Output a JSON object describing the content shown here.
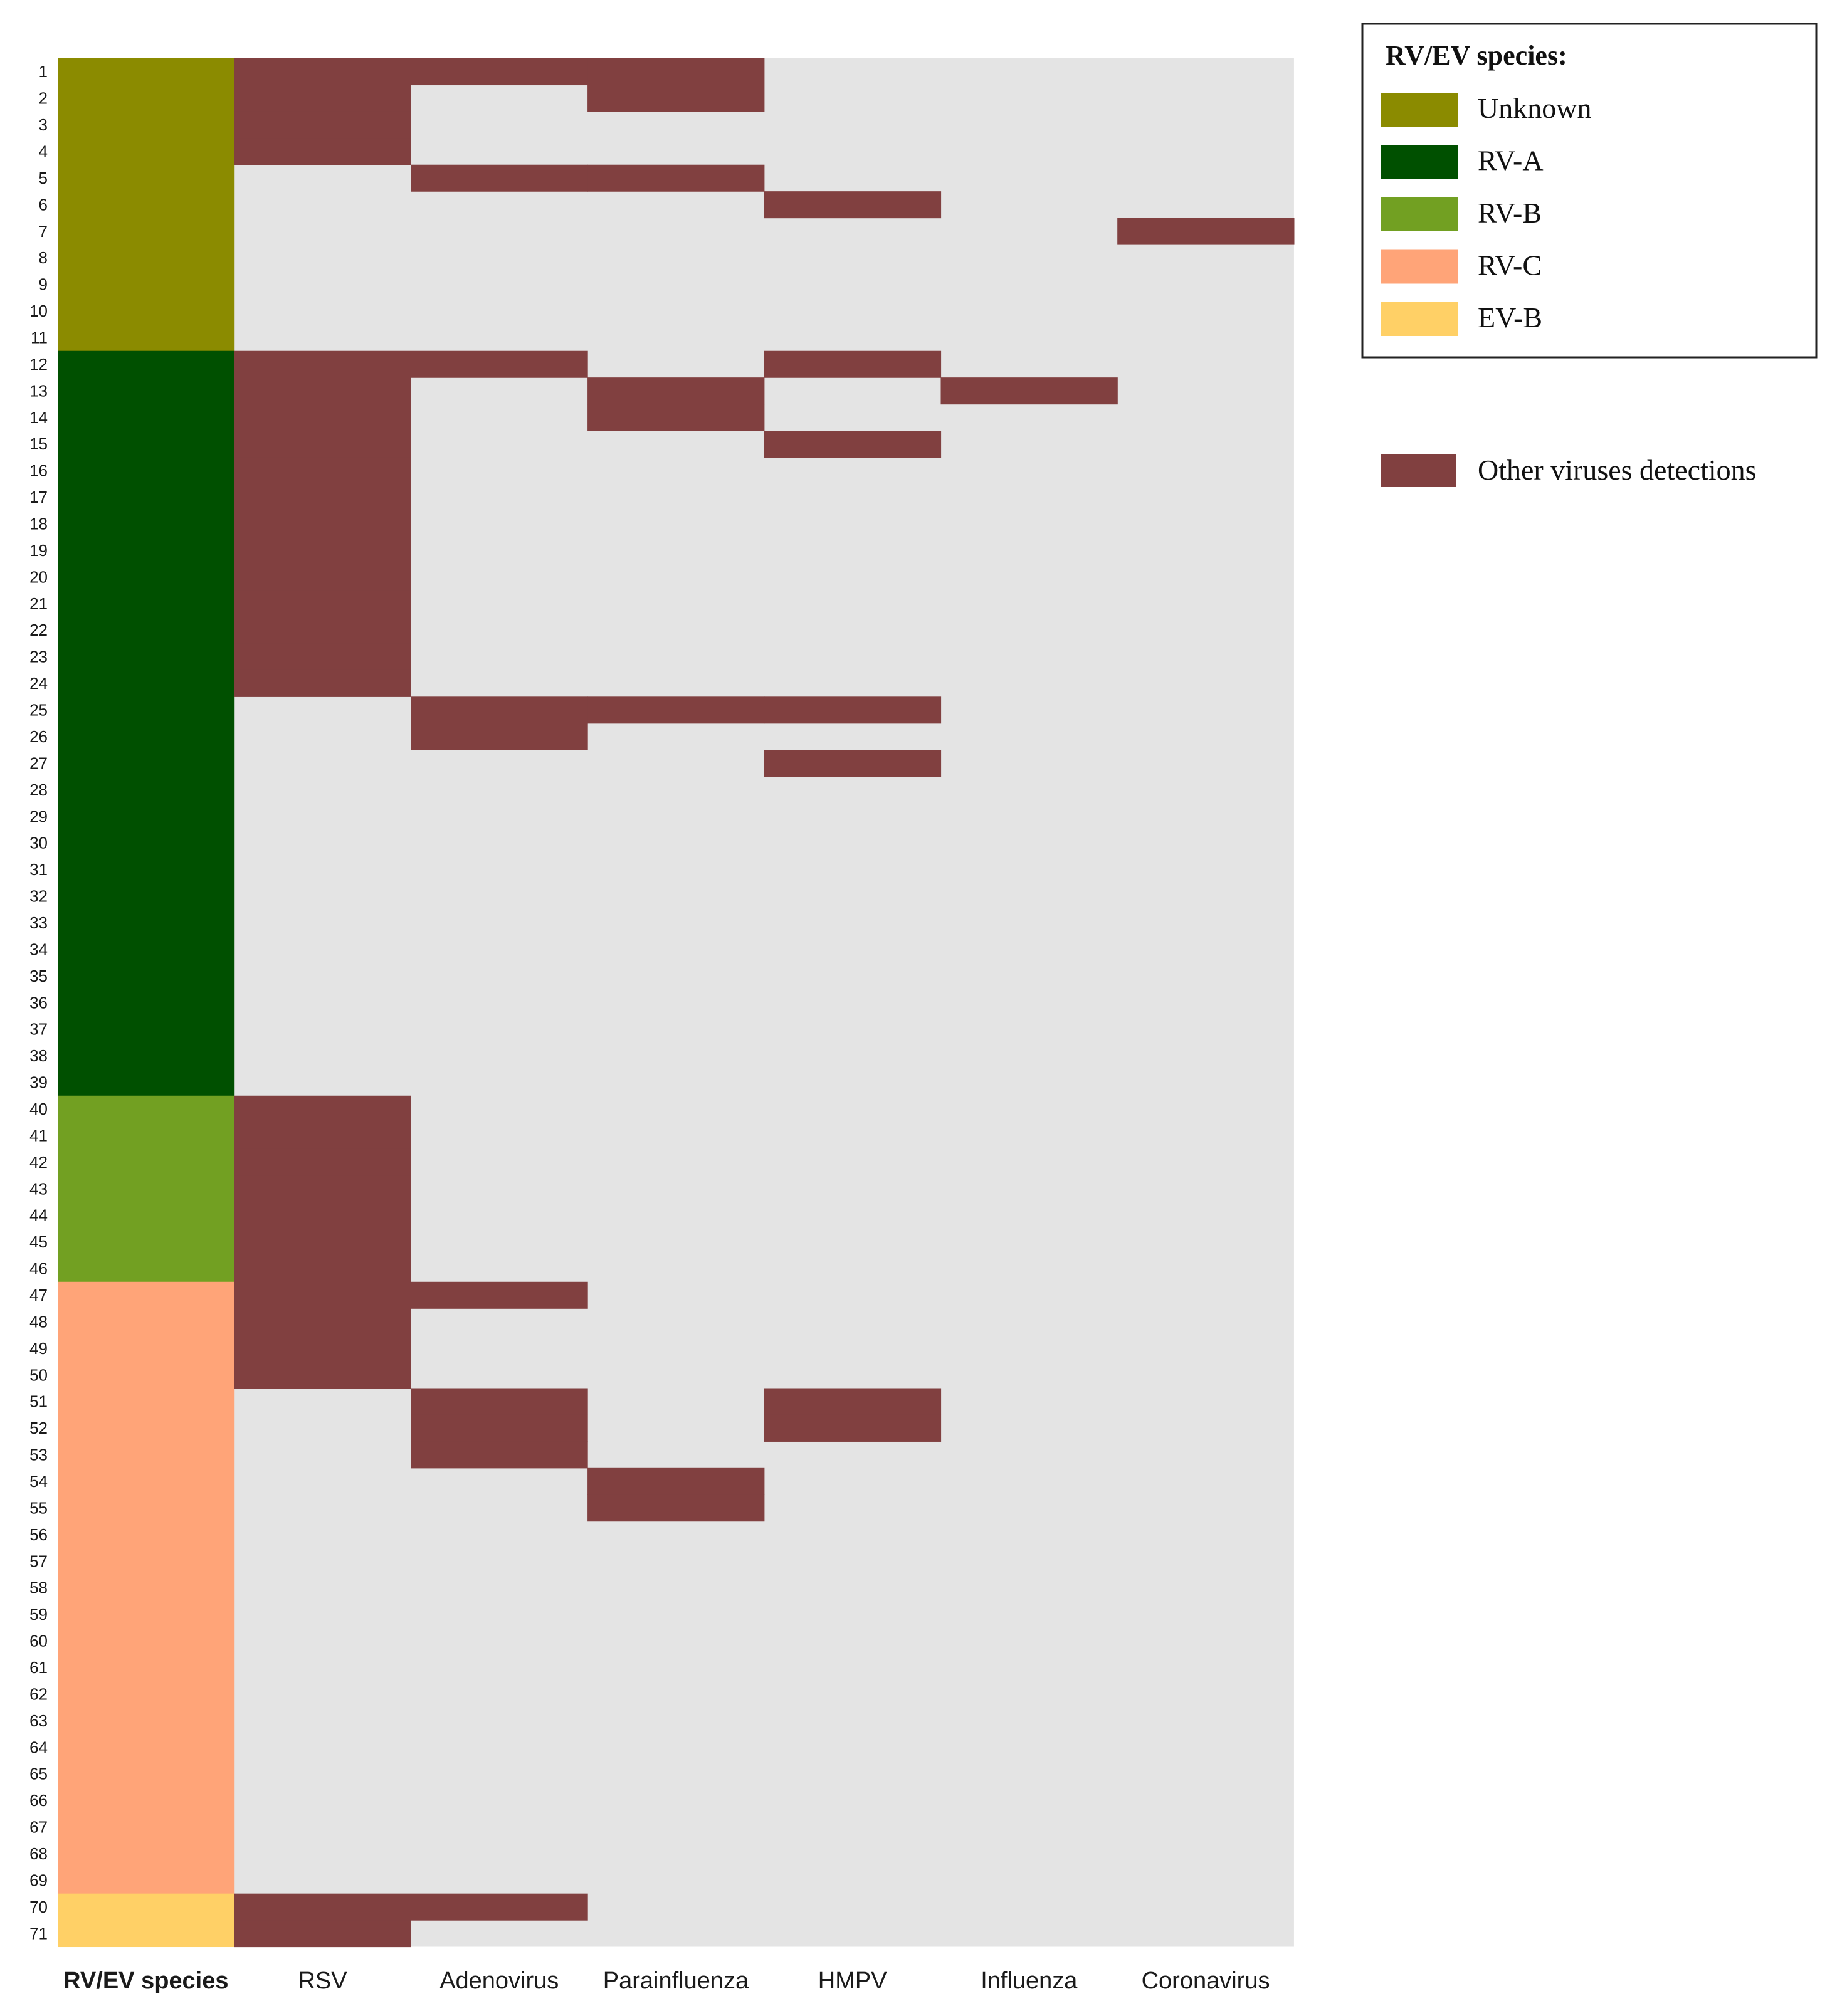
{
  "chart_data": {
    "type": "heatmap",
    "rows": [
      "1",
      "2",
      "3",
      "4",
      "5",
      "6",
      "7",
      "8",
      "9",
      "10",
      "11",
      "12",
      "13",
      "14",
      "15",
      "16",
      "17",
      "18",
      "19",
      "20",
      "21",
      "22",
      "23",
      "24",
      "25",
      "26",
      "27",
      "28",
      "29",
      "30",
      "31",
      "32",
      "33",
      "34",
      "35",
      "36",
      "37",
      "38",
      "39",
      "40",
      "41",
      "42",
      "43",
      "44",
      "45",
      "46",
      "47",
      "48",
      "49",
      "50",
      "51",
      "52",
      "53",
      "54",
      "55",
      "56",
      "57",
      "58",
      "59",
      "60",
      "61",
      "62",
      "63",
      "64",
      "65",
      "66",
      "67",
      "68",
      "69",
      "70",
      "71"
    ],
    "columns": [
      "RV/EV species",
      "RSV",
      "Adenovirus",
      "Parainfluenza",
      "HMPV",
      "Influenza",
      "Coronavirus"
    ],
    "species_blocks": [
      {
        "species": "Unknown",
        "from_row": 1,
        "to_row": 11
      },
      {
        "species": "RV-A",
        "from_row": 12,
        "to_row": 39
      },
      {
        "species": "RV-B",
        "from_row": 40,
        "to_row": 46
      },
      {
        "species": "RV-C",
        "from_row": 47,
        "to_row": 69
      },
      {
        "species": "EV-B",
        "from_row": 70,
        "to_row": 71
      }
    ],
    "detections": {
      "RSV": [
        1,
        2,
        3,
        4,
        12,
        13,
        14,
        15,
        16,
        17,
        18,
        19,
        20,
        21,
        22,
        23,
        24,
        40,
        41,
        42,
        43,
        44,
        45,
        46,
        47,
        48,
        49,
        50,
        70,
        71
      ],
      "Adenovirus": [
        1,
        5,
        12,
        25,
        26,
        47,
        51,
        52,
        53,
        70
      ],
      "Parainfluenza": [
        1,
        2,
        5,
        13,
        14,
        25,
        54,
        55
      ],
      "HMPV": [
        6,
        12,
        15,
        25,
        27,
        51,
        52
      ],
      "Influenza": [
        13
      ],
      "Coronavirus": [
        7
      ]
    },
    "legend": {
      "title": "RV/EV species:",
      "entries": [
        {
          "label": "Unknown",
          "color": "#8B8B00"
        },
        {
          "label": "RV-A",
          "color": "#005000"
        },
        {
          "label": "RV-B",
          "color": "#72A022"
        },
        {
          "label": "RV-C",
          "color": "#FFA478"
        },
        {
          "label": "EV-B",
          "color": "#FFD066"
        }
      ],
      "detection_label": "Other viruses detections",
      "detection_color": "#814040"
    },
    "background_color": "#E4E4E4"
  }
}
